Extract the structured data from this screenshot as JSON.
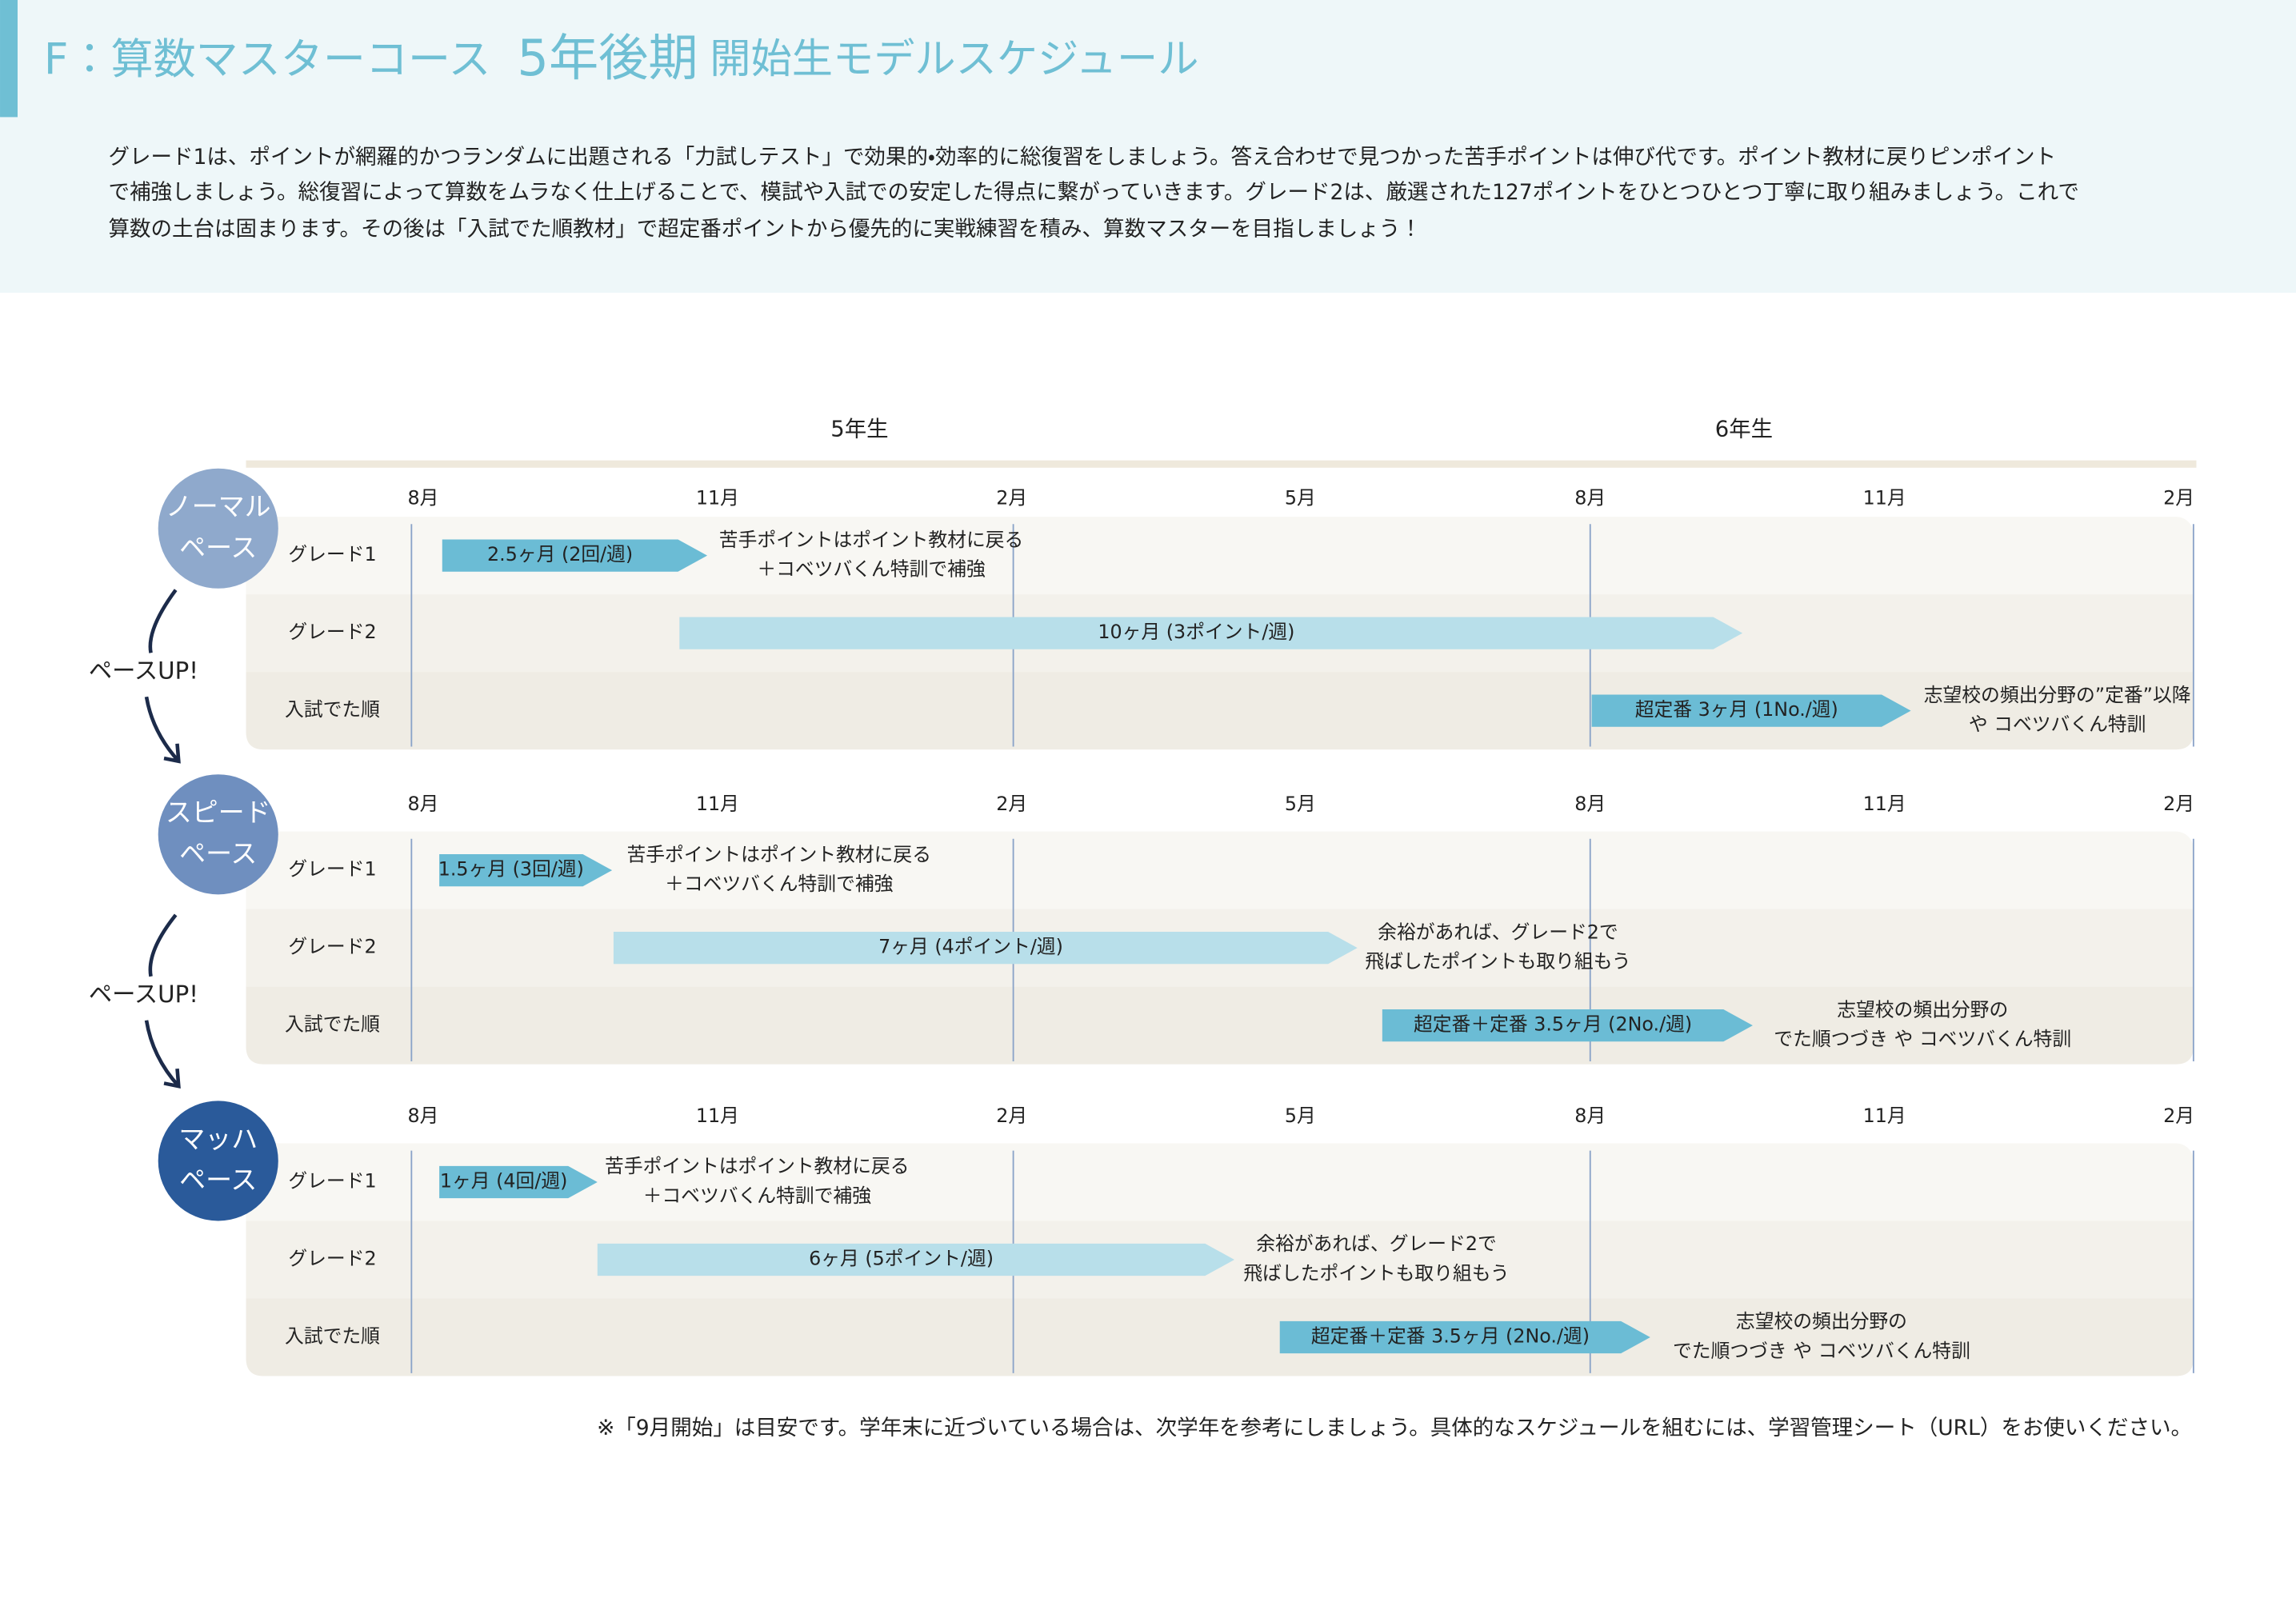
{
  "header": {
    "title_prefix": "F：算数マスターコース",
    "title_main": "5年後期",
    "title_suffix": "開始生モデルスケジュール",
    "description": [
      "グレード1は、ポイントが網羅的かつランダムに出題される「力試しテスト」で効果的・効率的に総復習をしましょう。答え合わせで見つかった苦手ポイントは伸び代です。ポイント教材に戻りピンポイント",
      "で補強しましょう。総復習によって算数をムラなく仕上げることで、模試や入試での安定した得点に繋がっていきます。グレード2は、厳選された127ポイントをひとつひとつ丁寧に取り組みましょう。これで",
      "算数の土台は固まります。その後は「入試でた順教材」で超定番ポイントから優先的に実戦練習を積み、算数マスターを目指しましょう！"
    ]
  },
  "years": [
    "5年生",
    "6年生"
  ],
  "paces": [
    {
      "label": [
        "ノーマル",
        "ペース"
      ],
      "months": [
        "8月",
        "11月",
        "2月",
        "5月",
        "8月",
        "11月",
        "2月"
      ],
      "rows": [
        {
          "label": "グレード1",
          "bar": "2.5ヶ月 (2回/週)",
          "note": [
            "苦手ポイントはポイント教材に戻る",
            "＋コベツバくん特訓で補強"
          ]
        },
        {
          "label": "グレード2",
          "bar": "10ヶ月 (3ポイント/週)"
        },
        {
          "label": "入試でた順",
          "bar": "超定番 3ヶ月 (1No./週)",
          "note": [
            "志望校の頻出分野の”定番”以降",
            "や コベツバくん特訓"
          ]
        }
      ]
    },
    {
      "label": [
        "スピード",
        "ペース"
      ],
      "months": [
        "8月",
        "11月",
        "2月",
        "5月",
        "8月",
        "11月",
        "2月"
      ],
      "rows": [
        {
          "label": "グレード1",
          "bar": "1.5ヶ月 (3回/週)",
          "note": [
            "苦手ポイントはポイント教材に戻る",
            "＋コベツバくん特訓で補強"
          ]
        },
        {
          "label": "グレード2",
          "bar": "7ヶ月 (4ポイント/週)",
          "note": [
            "余裕があれば、グレード2で",
            "飛ばしたポイントも取り組もう"
          ]
        },
        {
          "label": "入試でた順",
          "bar": "超定番＋定番 3.5ヶ月 (2No./週)",
          "note": [
            "志望校の頻出分野の",
            "でた順つづき や コベツバくん特訓"
          ]
        }
      ]
    },
    {
      "label": [
        "マッハ",
        "ペース"
      ],
      "months": [
        "8月",
        "11月",
        "2月",
        "5月",
        "8月",
        "11月",
        "2月"
      ],
      "rows": [
        {
          "label": "グレード1",
          "bar": "1ヶ月 (4回/週)",
          "note": [
            "苦手ポイントはポイント教材に戻る",
            "＋コベツバくん特訓で補強"
          ]
        },
        {
          "label": "グレード2",
          "bar": "6ヶ月 (5ポイント/週)",
          "note": [
            "余裕があれば、グレード2で",
            "飛ばしたポイントも取り組もう"
          ]
        },
        {
          "label": "入試でた順",
          "bar": "超定番＋定番 3.5ヶ月 (2No./週)",
          "note": [
            "志望校の頻出分野の",
            "でた順つづき や コベツバくん特訓"
          ]
        }
      ]
    }
  ],
  "pace_up": [
    "ペースUP!",
    "ペースUP!"
  ],
  "footnote": "※「9月開始」は目安です。学年末に近づいている場合は、次学年を参考にしましょう。具体的なスケジュールを組むには、学習管理シート（URL）をお使いください。"
}
